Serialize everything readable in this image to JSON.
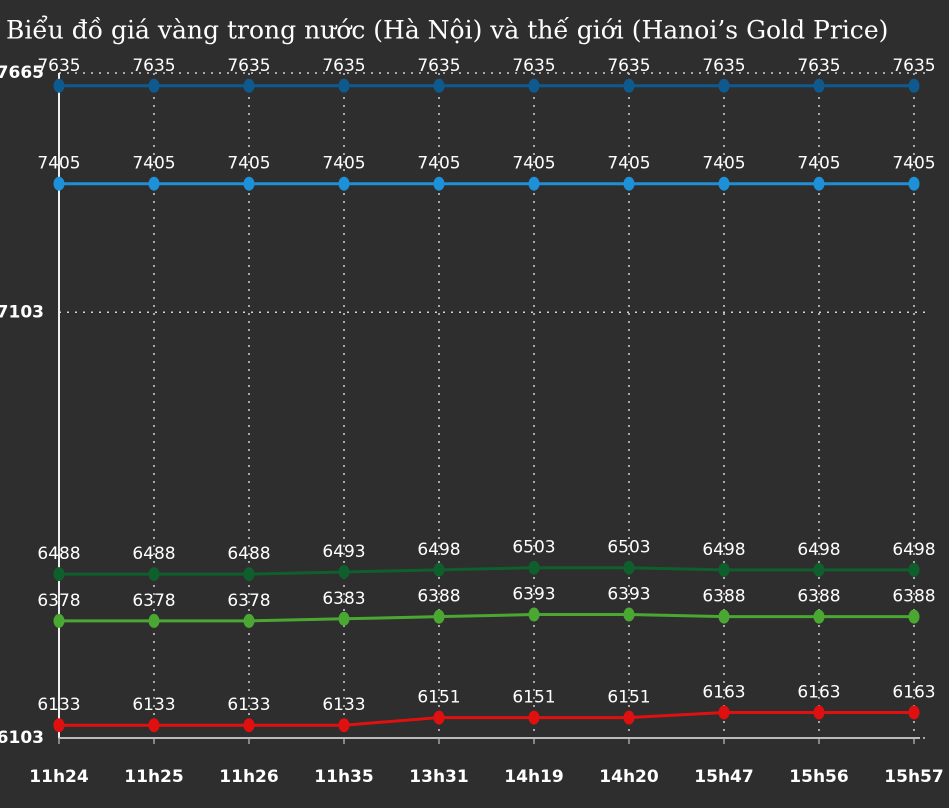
{
  "chart_data": {
    "type": "line",
    "title": "Biểu đồ giá vàng trong nước (Hà Nội) và thế giới (Hanoi’s Gold Price)",
    "categories": [
      "11h24",
      "11h25",
      "11h26",
      "11h35",
      "13h31",
      "14h19",
      "14h20",
      "15h47",
      "15h56",
      "15h57"
    ],
    "series": [
      {
        "color": "#0e5a8f",
        "values": [
          7635,
          7635,
          7635,
          7635,
          7635,
          7635,
          7635,
          7635,
          7635,
          7635
        ]
      },
      {
        "color": "#1e90d8",
        "values": [
          7405,
          7405,
          7405,
          7405,
          7405,
          7405,
          7405,
          7405,
          7405,
          7405
        ]
      },
      {
        "color": "#0f5f2c",
        "values": [
          6488,
          6488,
          6488,
          6493,
          6498,
          6503,
          6503,
          6498,
          6498,
          6498
        ]
      },
      {
        "color": "#4aa832",
        "values": [
          6378,
          6378,
          6378,
          6383,
          6388,
          6393,
          6393,
          6388,
          6388,
          6388
        ]
      },
      {
        "color": "#e01010",
        "values": [
          6133,
          6133,
          6133,
          6133,
          6151,
          6151,
          6151,
          6163,
          6163,
          6163
        ]
      }
    ],
    "ylim": [
      6103,
      7665
    ],
    "yticks": [
      6103,
      7103,
      7665
    ],
    "grid": true
  }
}
